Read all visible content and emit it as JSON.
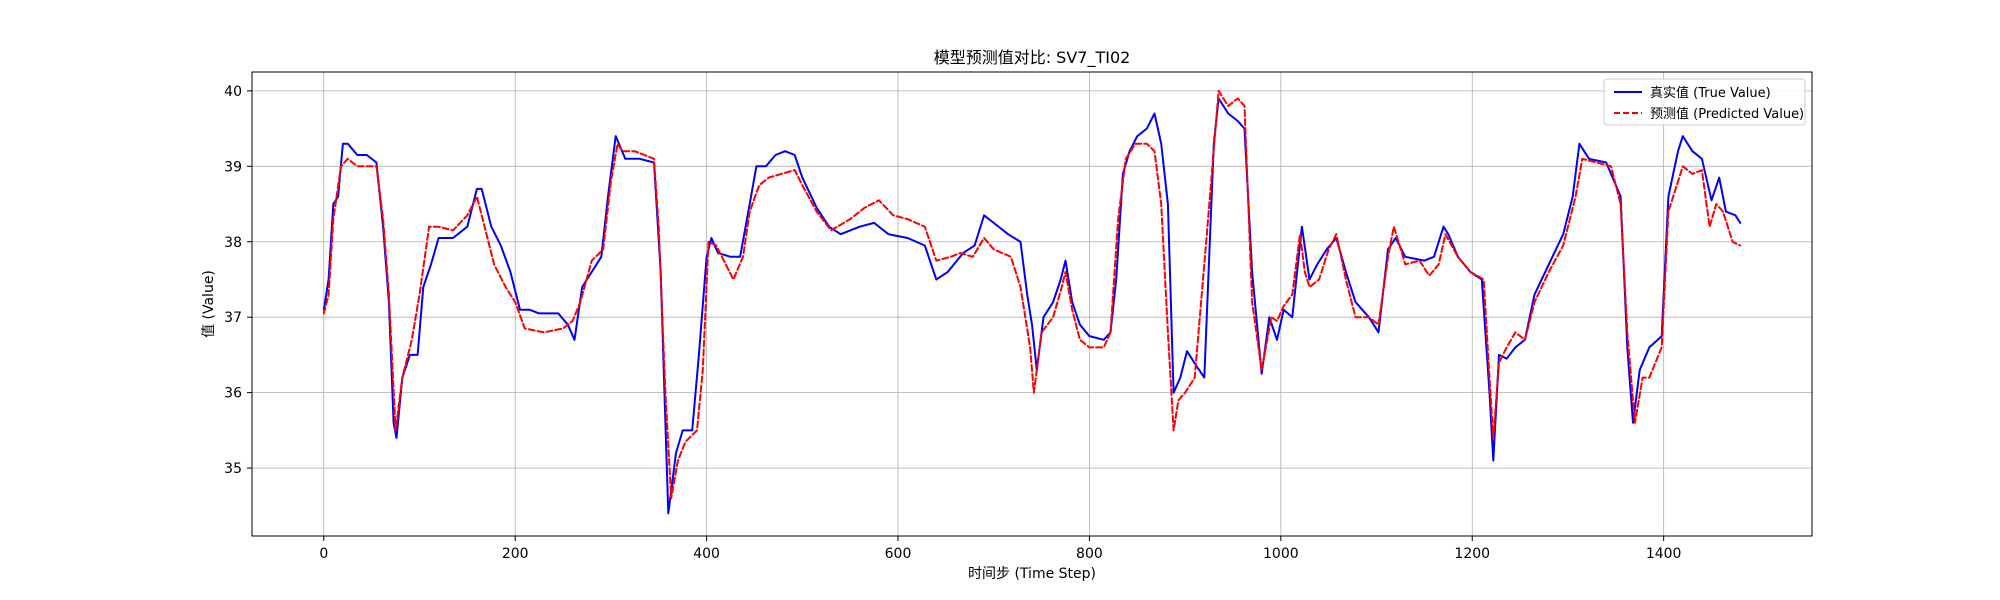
{
  "chart_data": {
    "type": "line",
    "title": "模型预测值对比: SV7_TI02",
    "xlabel": "时间步 (Time Step)",
    "ylabel": "值 (Value)",
    "xlim": [
      -75,
      1555
    ],
    "ylim": [
      34.1,
      40.25
    ],
    "xticks": [
      0,
      200,
      400,
      600,
      800,
      1000,
      1200,
      1400
    ],
    "yticks": [
      35,
      36,
      37,
      38,
      39,
      40
    ],
    "grid": true,
    "legend_position": "top-right",
    "series": [
      {
        "name": "真实值 (True Value)",
        "color": "#0000ff",
        "style": "solid",
        "points": [
          [
            0,
            37.1
          ],
          [
            5,
            37.5
          ],
          [
            10,
            38.5
          ],
          [
            15,
            38.6
          ],
          [
            20,
            39.3
          ],
          [
            25,
            39.3
          ],
          [
            35,
            39.15
          ],
          [
            45,
            39.15
          ],
          [
            55,
            39.05
          ],
          [
            62,
            38.2
          ],
          [
            68,
            37.2
          ],
          [
            73,
            35.6
          ],
          [
            76,
            35.4
          ],
          [
            82,
            36.2
          ],
          [
            90,
            36.5
          ],
          [
            98,
            36.5
          ],
          [
            104,
            37.4
          ],
          [
            112,
            37.7
          ],
          [
            120,
            38.05
          ],
          [
            135,
            38.05
          ],
          [
            150,
            38.2
          ],
          [
            160,
            38.7
          ],
          [
            165,
            38.7
          ],
          [
            175,
            38.2
          ],
          [
            185,
            37.95
          ],
          [
            195,
            37.6
          ],
          [
            205,
            37.1
          ],
          [
            215,
            37.1
          ],
          [
            225,
            37.05
          ],
          [
            235,
            37.05
          ],
          [
            245,
            37.05
          ],
          [
            255,
            36.9
          ],
          [
            262,
            36.7
          ],
          [
            270,
            37.4
          ],
          [
            280,
            37.6
          ],
          [
            290,
            37.8
          ],
          [
            297,
            38.6
          ],
          [
            305,
            39.4
          ],
          [
            315,
            39.1
          ],
          [
            330,
            39.1
          ],
          [
            345,
            39.05
          ],
          [
            352,
            37.6
          ],
          [
            357,
            35.6
          ],
          [
            360,
            34.4
          ],
          [
            368,
            35.2
          ],
          [
            375,
            35.5
          ],
          [
            385,
            35.5
          ],
          [
            392,
            36.5
          ],
          [
            400,
            37.8
          ],
          [
            405,
            38.05
          ],
          [
            412,
            37.85
          ],
          [
            425,
            37.8
          ],
          [
            435,
            37.8
          ],
          [
            445,
            38.5
          ],
          [
            452,
            39.0
          ],
          [
            462,
            39.0
          ],
          [
            472,
            39.15
          ],
          [
            482,
            39.2
          ],
          [
            492,
            39.15
          ],
          [
            500,
            38.85
          ],
          [
            515,
            38.45
          ],
          [
            528,
            38.2
          ],
          [
            540,
            38.1
          ],
          [
            560,
            38.2
          ],
          [
            575,
            38.25
          ],
          [
            590,
            38.1
          ],
          [
            610,
            38.05
          ],
          [
            628,
            37.95
          ],
          [
            640,
            37.5
          ],
          [
            652,
            37.6
          ],
          [
            668,
            37.85
          ],
          [
            680,
            37.95
          ],
          [
            690,
            38.35
          ],
          [
            700,
            38.25
          ],
          [
            715,
            38.1
          ],
          [
            728,
            38.0
          ],
          [
            735,
            37.3
          ],
          [
            740,
            36.9
          ],
          [
            745,
            36.3
          ],
          [
            752,
            37.0
          ],
          [
            762,
            37.2
          ],
          [
            770,
            37.5
          ],
          [
            775,
            37.75
          ],
          [
            782,
            37.2
          ],
          [
            790,
            36.9
          ],
          [
            800,
            36.75
          ],
          [
            815,
            36.7
          ],
          [
            822,
            36.8
          ],
          [
            828,
            37.5
          ],
          [
            835,
            38.9
          ],
          [
            842,
            39.2
          ],
          [
            850,
            39.4
          ],
          [
            860,
            39.5
          ],
          [
            868,
            39.7
          ],
          [
            875,
            39.3
          ],
          [
            882,
            38.5
          ],
          [
            888,
            36.0
          ],
          [
            895,
            36.2
          ],
          [
            902,
            36.55
          ],
          [
            912,
            36.35
          ],
          [
            920,
            36.2
          ],
          [
            930,
            39.3
          ],
          [
            935,
            39.9
          ],
          [
            945,
            39.7
          ],
          [
            955,
            39.6
          ],
          [
            962,
            39.5
          ],
          [
            970,
            37.6
          ],
          [
            980,
            36.25
          ],
          [
            988,
            37.0
          ],
          [
            996,
            36.7
          ],
          [
            1003,
            37.1
          ],
          [
            1012,
            37.0
          ],
          [
            1022,
            38.2
          ],
          [
            1030,
            37.5
          ],
          [
            1038,
            37.7
          ],
          [
            1048,
            37.9
          ],
          [
            1058,
            38.05
          ],
          [
            1068,
            37.6
          ],
          [
            1078,
            37.2
          ],
          [
            1092,
            37.0
          ],
          [
            1102,
            36.8
          ],
          [
            1112,
            37.9
          ],
          [
            1120,
            38.05
          ],
          [
            1130,
            37.8
          ],
          [
            1150,
            37.75
          ],
          [
            1160,
            37.8
          ],
          [
            1170,
            38.2
          ],
          [
            1175,
            38.1
          ],
          [
            1185,
            37.8
          ],
          [
            1198,
            37.6
          ],
          [
            1210,
            37.5
          ],
          [
            1218,
            36.0
          ],
          [
            1222,
            35.1
          ],
          [
            1228,
            36.5
          ],
          [
            1236,
            36.45
          ],
          [
            1245,
            36.6
          ],
          [
            1255,
            36.7
          ],
          [
            1265,
            37.3
          ],
          [
            1280,
            37.7
          ],
          [
            1295,
            38.1
          ],
          [
            1305,
            38.6
          ],
          [
            1312,
            39.3
          ],
          [
            1322,
            39.1
          ],
          [
            1340,
            39.05
          ],
          [
            1355,
            38.6
          ],
          [
            1362,
            36.6
          ],
          [
            1368,
            35.6
          ],
          [
            1375,
            36.3
          ],
          [
            1385,
            36.6
          ],
          [
            1398,
            36.75
          ],
          [
            1405,
            38.6
          ],
          [
            1415,
            39.2
          ],
          [
            1420,
            39.4
          ],
          [
            1430,
            39.2
          ],
          [
            1440,
            39.1
          ],
          [
            1450,
            38.55
          ],
          [
            1458,
            38.85
          ],
          [
            1465,
            38.4
          ],
          [
            1475,
            38.35
          ],
          [
            1480,
            38.25
          ]
        ]
      },
      {
        "name": "预测值 (Predicted Value)",
        "color": "#ff0000",
        "style": "dashed",
        "points": [
          [
            0,
            37.05
          ],
          [
            5,
            37.3
          ],
          [
            10,
            38.3
          ],
          [
            18,
            39.0
          ],
          [
            25,
            39.1
          ],
          [
            35,
            39.0
          ],
          [
            55,
            39.0
          ],
          [
            62,
            38.3
          ],
          [
            68,
            37.3
          ],
          [
            75,
            35.5
          ],
          [
            82,
            36.2
          ],
          [
            92,
            36.7
          ],
          [
            100,
            37.3
          ],
          [
            110,
            38.2
          ],
          [
            120,
            38.2
          ],
          [
            135,
            38.15
          ],
          [
            150,
            38.35
          ],
          [
            160,
            38.6
          ],
          [
            168,
            38.2
          ],
          [
            178,
            37.7
          ],
          [
            190,
            37.4
          ],
          [
            200,
            37.2
          ],
          [
            210,
            36.85
          ],
          [
            230,
            36.8
          ],
          [
            250,
            36.85
          ],
          [
            260,
            36.95
          ],
          [
            268,
            37.2
          ],
          [
            280,
            37.75
          ],
          [
            292,
            37.9
          ],
          [
            300,
            38.8
          ],
          [
            307,
            39.3
          ],
          [
            312,
            39.2
          ],
          [
            325,
            39.2
          ],
          [
            345,
            39.1
          ],
          [
            350,
            38.2
          ],
          [
            357,
            36.0
          ],
          [
            363,
            34.6
          ],
          [
            370,
            35.1
          ],
          [
            378,
            35.35
          ],
          [
            390,
            35.5
          ],
          [
            396,
            36.3
          ],
          [
            402,
            38.0
          ],
          [
            410,
            37.95
          ],
          [
            420,
            37.7
          ],
          [
            428,
            37.5
          ],
          [
            438,
            37.8
          ],
          [
            445,
            38.4
          ],
          [
            455,
            38.75
          ],
          [
            465,
            38.85
          ],
          [
            478,
            38.9
          ],
          [
            492,
            38.95
          ],
          [
            500,
            38.75
          ],
          [
            515,
            38.4
          ],
          [
            530,
            38.15
          ],
          [
            550,
            38.3
          ],
          [
            565,
            38.45
          ],
          [
            580,
            38.55
          ],
          [
            595,
            38.35
          ],
          [
            610,
            38.3
          ],
          [
            628,
            38.2
          ],
          [
            640,
            37.75
          ],
          [
            655,
            37.8
          ],
          [
            665,
            37.85
          ],
          [
            678,
            37.8
          ],
          [
            690,
            38.05
          ],
          [
            700,
            37.9
          ],
          [
            718,
            37.8
          ],
          [
            728,
            37.4
          ],
          [
            738,
            36.6
          ],
          [
            742,
            36.0
          ],
          [
            750,
            36.8
          ],
          [
            762,
            37.0
          ],
          [
            770,
            37.35
          ],
          [
            775,
            37.6
          ],
          [
            782,
            37.1
          ],
          [
            790,
            36.7
          ],
          [
            800,
            36.6
          ],
          [
            815,
            36.6
          ],
          [
            822,
            36.8
          ],
          [
            830,
            38.3
          ],
          [
            838,
            39.1
          ],
          [
            848,
            39.3
          ],
          [
            860,
            39.3
          ],
          [
            868,
            39.2
          ],
          [
            875,
            38.5
          ],
          [
            882,
            36.8
          ],
          [
            888,
            35.5
          ],
          [
            893,
            35.9
          ],
          [
            900,
            36.0
          ],
          [
            910,
            36.2
          ],
          [
            922,
            38.0
          ],
          [
            935,
            40.0
          ],
          [
            945,
            39.8
          ],
          [
            955,
            39.9
          ],
          [
            962,
            39.8
          ],
          [
            970,
            37.2
          ],
          [
            980,
            36.3
          ],
          [
            990,
            37.0
          ],
          [
            996,
            36.95
          ],
          [
            1003,
            37.15
          ],
          [
            1012,
            37.3
          ],
          [
            1020,
            38.1
          ],
          [
            1025,
            37.6
          ],
          [
            1030,
            37.4
          ],
          [
            1040,
            37.5
          ],
          [
            1050,
            37.9
          ],
          [
            1058,
            38.1
          ],
          [
            1068,
            37.5
          ],
          [
            1078,
            37.0
          ],
          [
            1092,
            37.0
          ],
          [
            1102,
            36.9
          ],
          [
            1112,
            37.8
          ],
          [
            1118,
            38.2
          ],
          [
            1130,
            37.7
          ],
          [
            1145,
            37.75
          ],
          [
            1155,
            37.55
          ],
          [
            1165,
            37.7
          ],
          [
            1172,
            38.1
          ],
          [
            1185,
            37.8
          ],
          [
            1198,
            37.6
          ],
          [
            1212,
            37.5
          ],
          [
            1218,
            36.2
          ],
          [
            1222,
            35.4
          ],
          [
            1228,
            36.4
          ],
          [
            1236,
            36.6
          ],
          [
            1245,
            36.8
          ],
          [
            1255,
            36.7
          ],
          [
            1265,
            37.2
          ],
          [
            1280,
            37.6
          ],
          [
            1295,
            37.95
          ],
          [
            1308,
            38.6
          ],
          [
            1315,
            39.1
          ],
          [
            1330,
            39.05
          ],
          [
            1345,
            39.0
          ],
          [
            1355,
            38.5
          ],
          [
            1362,
            36.8
          ],
          [
            1370,
            35.6
          ],
          [
            1378,
            36.2
          ],
          [
            1385,
            36.2
          ],
          [
            1398,
            36.6
          ],
          [
            1405,
            38.4
          ],
          [
            1415,
            38.8
          ],
          [
            1420,
            39.0
          ],
          [
            1430,
            38.9
          ],
          [
            1440,
            38.95
          ],
          [
            1448,
            38.2
          ],
          [
            1455,
            38.5
          ],
          [
            1462,
            38.4
          ],
          [
            1472,
            38.0
          ],
          [
            1480,
            37.95
          ]
        ]
      }
    ]
  }
}
